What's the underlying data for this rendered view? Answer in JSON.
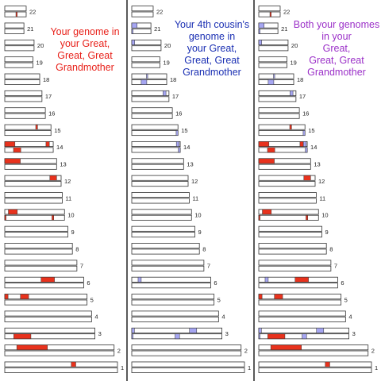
{
  "colors": {
    "panel_0_title": "#e8211a",
    "panel_1_title": "#1a2fb3",
    "panel_2_title": "#9b30c8",
    "red_segment": "#e8321d",
    "blue_segment": "#a6a6f2",
    "chromosome_outline": "#333333",
    "divider": "#000000"
  },
  "panels": [
    {
      "title": "Your genome in\nyour Great,\nGreat, Great\nGrandmother",
      "segment_color": "red"
    },
    {
      "title": "Your 4th cousin's\ngenome in\nyour Great,\nGreat, Great\nGrandmother",
      "segment_color": "blue"
    },
    {
      "title": "Both your genomes\nin your\nGreat,\nGreat, Great\nGrandmother",
      "segment_color": "both"
    }
  ],
  "chromosomes": [
    {
      "label": "22",
      "length": 0.19,
      "red": [
        [],
        [
          [
            0.52,
            0.58
          ]
        ]
      ],
      "blue": [
        [],
        []
      ]
    },
    {
      "label": "21",
      "length": 0.17,
      "red": [
        [],
        []
      ],
      "blue": [
        [
          [
            0.0,
            0.28
          ]
        ],
        [
          [
            0.0,
            0.06
          ]
        ]
      ]
    },
    {
      "label": "20",
      "length": 0.26,
      "red": [
        [],
        []
      ],
      "blue": [
        [
          [
            0.0,
            0.1
          ]
        ],
        []
      ]
    },
    {
      "label": "19",
      "length": 0.25,
      "red": [
        [],
        []
      ],
      "blue": [
        [],
        []
      ]
    },
    {
      "label": "18",
      "length": 0.31,
      "red": [
        [],
        []
      ],
      "blue": [
        [
          [
            0.42,
            0.44
          ]
        ],
        [
          [
            0.27,
            0.43
          ]
        ]
      ]
    },
    {
      "label": "17",
      "length": 0.33,
      "red": [
        [],
        []
      ],
      "blue": [
        [
          [
            0.84,
            0.92
          ]
        ],
        []
      ]
    },
    {
      "label": "16",
      "length": 0.36,
      "red": [
        [],
        []
      ],
      "blue": [
        [],
        []
      ]
    },
    {
      "label": "15",
      "length": 0.41,
      "red": [
        [
          [
            0.67,
            0.71
          ]
        ],
        []
      ],
      "blue": [
        [],
        [
          [
            0.96,
            1.0
          ]
        ]
      ]
    },
    {
      "label": "14",
      "length": 0.43,
      "red": [
        [
          [
            0.0,
            0.21
          ],
          [
            0.85,
            0.92
          ]
        ],
        [
          [
            0.18,
            0.33
          ]
        ]
      ],
      "blue": [
        [
          [
            0.92,
            0.98
          ]
        ],
        [
          [
            0.96,
            1.0
          ]
        ]
      ]
    },
    {
      "label": "13",
      "length": 0.46,
      "red": [
        [
          [
            0.0,
            0.3
          ]
        ],
        []
      ],
      "blue": [
        [],
        []
      ]
    },
    {
      "label": "12",
      "length": 0.5,
      "red": [
        [
          [
            0.8,
            0.92
          ]
        ],
        []
      ],
      "blue": [
        [],
        []
      ]
    },
    {
      "label": "11",
      "length": 0.51,
      "red": [
        [],
        []
      ],
      "blue": [
        [],
        []
      ]
    },
    {
      "label": "10",
      "length": 0.53,
      "red": [
        [
          [
            0.06,
            0.21
          ]
        ],
        [
          [
            0.0,
            0.02
          ],
          [
            0.79,
            0.82
          ]
        ]
      ],
      "blue": [
        [],
        []
      ]
    },
    {
      "label": "9",
      "length": 0.56,
      "red": [
        [],
        []
      ],
      "blue": [
        [],
        []
      ]
    },
    {
      "label": "8",
      "length": 0.6,
      "red": [
        [],
        []
      ],
      "blue": [
        [],
        []
      ]
    },
    {
      "label": "7",
      "length": 0.64,
      "red": [
        [],
        []
      ],
      "blue": [
        [],
        []
      ]
    },
    {
      "label": "6",
      "length": 0.7,
      "red": [
        [
          [
            0.46,
            0.63
          ]
        ],
        []
      ],
      "blue": [
        [
          [
            0.08,
            0.12
          ]
        ],
        []
      ]
    },
    {
      "label": "5",
      "length": 0.73,
      "red": [
        [
          [
            0.0,
            0.04
          ],
          [
            0.19,
            0.29
          ]
        ],
        []
      ],
      "blue": [
        [],
        []
      ]
    },
    {
      "label": "4",
      "length": 0.77,
      "red": [
        [],
        []
      ],
      "blue": [
        [],
        []
      ]
    },
    {
      "label": "3",
      "length": 0.8,
      "red": [
        [],
        [
          [
            0.1,
            0.29
          ]
        ]
      ],
      "blue": [
        [
          [
            0.0,
            0.03
          ],
          [
            0.64,
            0.72
          ]
        ],
        [
          [
            0.0,
            0.01
          ],
          [
            0.48,
            0.53
          ]
        ]
      ]
    },
    {
      "label": "2",
      "length": 0.97,
      "red": [
        [
          [
            0.11,
            0.39
          ]
        ],
        []
      ],
      "blue": [
        [],
        []
      ]
    },
    {
      "label": "1",
      "length": 1.0,
      "red": [
        [
          [
            0.59,
            0.63
          ]
        ],
        []
      ],
      "blue": [
        [],
        []
      ]
    }
  ]
}
